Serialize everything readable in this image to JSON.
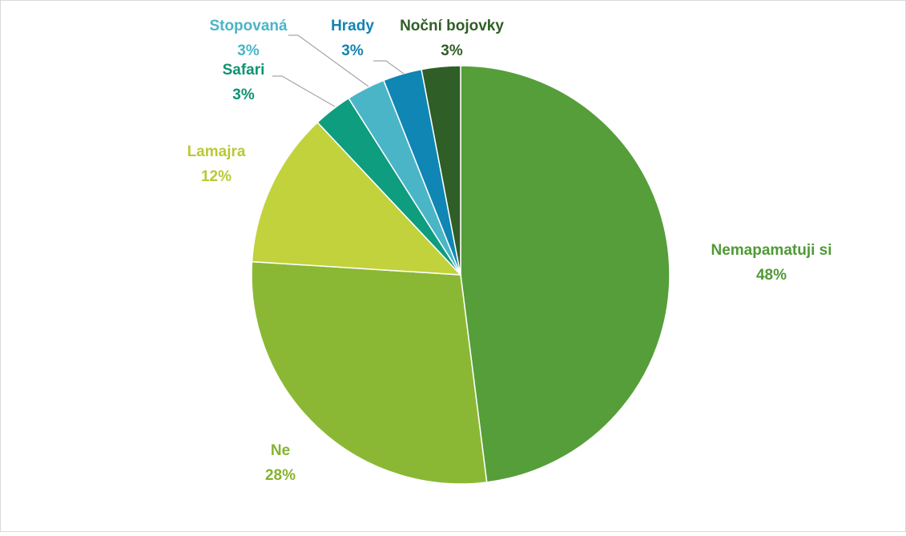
{
  "chart_data": {
    "type": "pie",
    "categories": [
      "Nemapamatuji si",
      "Ne",
      "Lamajra",
      "Safari",
      "Stopovaná",
      "Hrady",
      "Noční bojovky"
    ],
    "values": [
      48,
      28,
      12,
      3,
      3,
      3,
      3
    ],
    "value_labels": [
      "48%",
      "28%",
      "12%",
      "3%",
      "3%",
      "3%",
      "3%"
    ],
    "colors": [
      "#559e3a",
      "#8bb834",
      "#c2d23c",
      "#0e9d7e",
      "#4bb5c8",
      "#0f86b3",
      "#2f5e26"
    ],
    "label_colors": [
      "#4f9a35",
      "#86b231",
      "#b9c935",
      "#0e9373",
      "#4bb5c8",
      "#1283b0",
      "#2f5e26"
    ]
  }
}
